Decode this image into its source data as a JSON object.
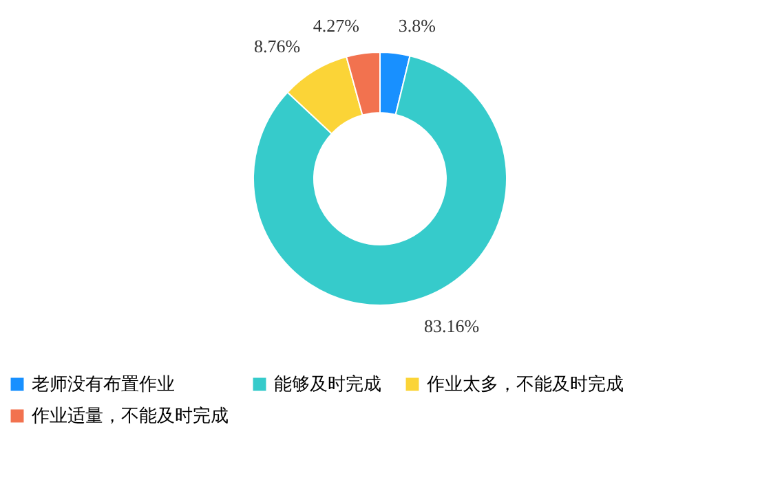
{
  "chart_data": {
    "type": "donut",
    "categories": [
      "老师没有布置作业",
      "能够及时完成",
      "作业太多，不能及时完成",
      "作业适量，不能及时完成"
    ],
    "values": [
      3.8,
      83.16,
      8.76,
      4.27
    ],
    "colors": [
      "#1890ff",
      "#36cbcb",
      "#fbd437",
      "#f2724f"
    ],
    "value_labels": [
      "3.8%",
      "83.16%",
      "8.76%",
      "4.27%"
    ],
    "legend": "bottom"
  }
}
